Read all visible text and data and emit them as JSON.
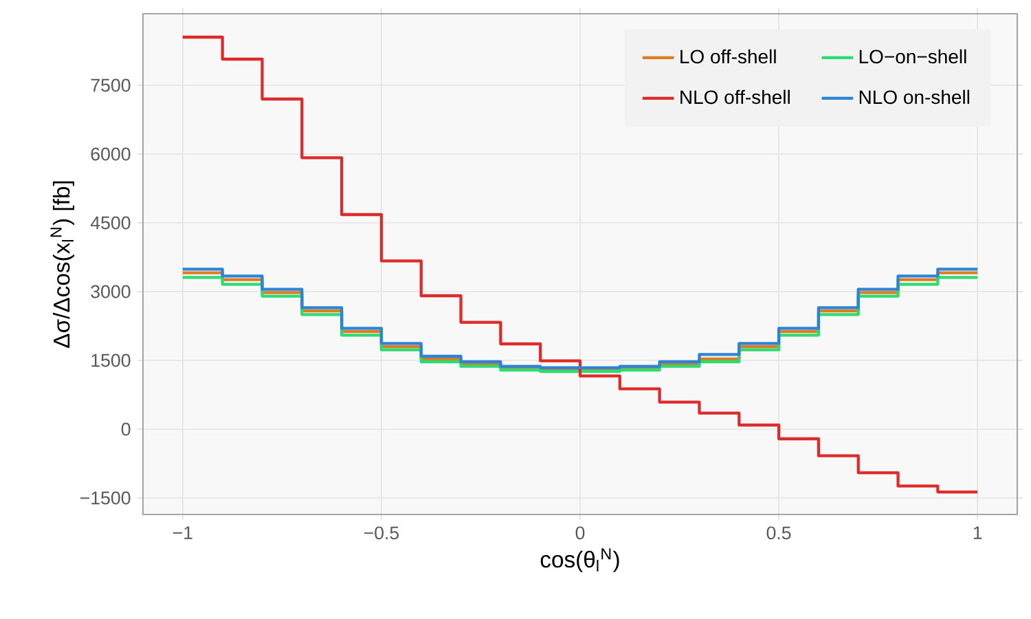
{
  "chart_data": {
    "type": "histogram",
    "xlabel": "cos(θ$_{l}$$^{N}$)",
    "ylabel": "Δσ/Δcos(x$_{l}$$^{N}$) [fb]",
    "bins": [
      -1,
      -0.9,
      -0.8,
      -0.7,
      -0.6,
      -0.5,
      -0.4,
      -0.3,
      -0.2,
      -0.1,
      0,
      0.1,
      0.2,
      0.3,
      0.4,
      0.5,
      0.6,
      0.7,
      0.8,
      0.9,
      1
    ],
    "series": [
      {
        "name": "LO off-shell",
        "color": "#e07b20",
        "values": [
          3410,
          3260,
          2980,
          2580,
          2130,
          1800,
          1530,
          1420,
          1330,
          1300,
          1300,
          1330,
          1420,
          1530,
          1800,
          2130,
          2580,
          2980,
          3260,
          3410
        ]
      },
      {
        "name": "LO−on−shell",
        "color": "#2adc72",
        "values": [
          3310,
          3160,
          2900,
          2500,
          2050,
          1730,
          1470,
          1370,
          1290,
          1260,
          1260,
          1290,
          1370,
          1470,
          1730,
          2050,
          2500,
          2900,
          3160,
          3310
        ]
      },
      {
        "name": "NLO off-shell",
        "color": "#dd2a2a",
        "values": [
          8550,
          8070,
          7200,
          5920,
          4680,
          3670,
          2910,
          2330,
          1860,
          1490,
          1160,
          880,
          590,
          350,
          90,
          -210,
          -580,
          -950,
          -1240,
          -1370
        ]
      },
      {
        "name": "NLO on-shell",
        "color": "#2a84d8",
        "values": [
          3490,
          3340,
          3050,
          2650,
          2200,
          1870,
          1590,
          1470,
          1370,
          1340,
          1340,
          1370,
          1470,
          1630,
          1870,
          2200,
          2650,
          3050,
          3340,
          3490
        ]
      }
    ],
    "xlim": [
      -1.1,
      1.1
    ],
    "xticks": [
      {
        "value": -1,
        "label": "−1"
      },
      {
        "value": -0.5,
        "label": "−0.5"
      },
      0,
      0.5,
      1
    ],
    "ylim": [
      -1860,
      9060
    ],
    "yticks": [
      {
        "value": -1500,
        "label": "−1500"
      },
      0,
      1500,
      3000,
      4500,
      6000,
      7500
    ],
    "grid": true,
    "legend": "top right"
  }
}
